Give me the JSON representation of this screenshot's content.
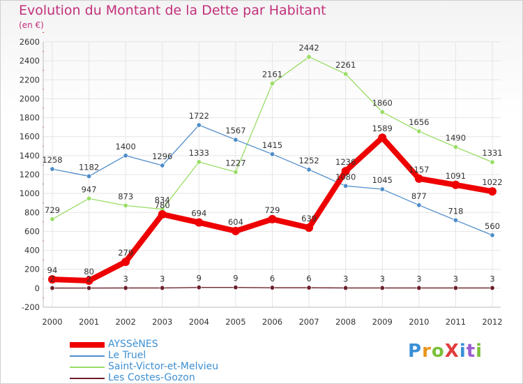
{
  "title": "Evolution du Montant de la Dette par Habitant",
  "subtitle": "(en €)",
  "logo": {
    "text": "ProXiti",
    "letter_colors": [
      "#3a8fd6",
      "#e8941c",
      "#7bbf3a",
      "#e23b3b",
      "#3a8fd6",
      "#9b5bd1",
      "#7bbf3a"
    ]
  },
  "chart_data": {
    "type": "line",
    "title": "Evolution du Montant de la Dette par Habitant",
    "subtitle": "(en €)",
    "xlabel": "",
    "ylabel": "",
    "ylim": [
      -200,
      2600
    ],
    "yticks": [
      -200,
      0,
      200,
      400,
      600,
      800,
      1000,
      1200,
      1400,
      1600,
      1800,
      2000,
      2200,
      2400,
      2600
    ],
    "categories": [
      "2000",
      "2001",
      "2002",
      "2003",
      "2004",
      "2005",
      "2006",
      "2007",
      "2008",
      "2009",
      "2010",
      "2011",
      "2012"
    ],
    "grid": true,
    "legend_position": "bottom-left",
    "series": [
      {
        "name": "AYSSèNES",
        "color": "#ee0000",
        "values": [
          94,
          80,
          279,
          780,
          694,
          604,
          729,
          639,
          1236,
          1589,
          1157,
          1091,
          1022
        ]
      },
      {
        "name": "Le Truel",
        "color": "#4f8dc9",
        "values": [
          1258,
          1182,
          1400,
          1296,
          1722,
          1567,
          1415,
          1252,
          1080,
          1045,
          877,
          718,
          560
        ]
      },
      {
        "name": "Saint-Victor-et-Melvieu",
        "color": "#99dd66",
        "values": [
          729,
          947,
          873,
          834,
          1333,
          1227,
          2161,
          2442,
          2261,
          1860,
          1656,
          1490,
          1331
        ]
      },
      {
        "name": "Les Costes-Gozon",
        "color": "#6b1f2a",
        "values": [
          2,
          2,
          3,
          3,
          9,
          9,
          6,
          6,
          3,
          3,
          3,
          3,
          3
        ]
      }
    ]
  }
}
